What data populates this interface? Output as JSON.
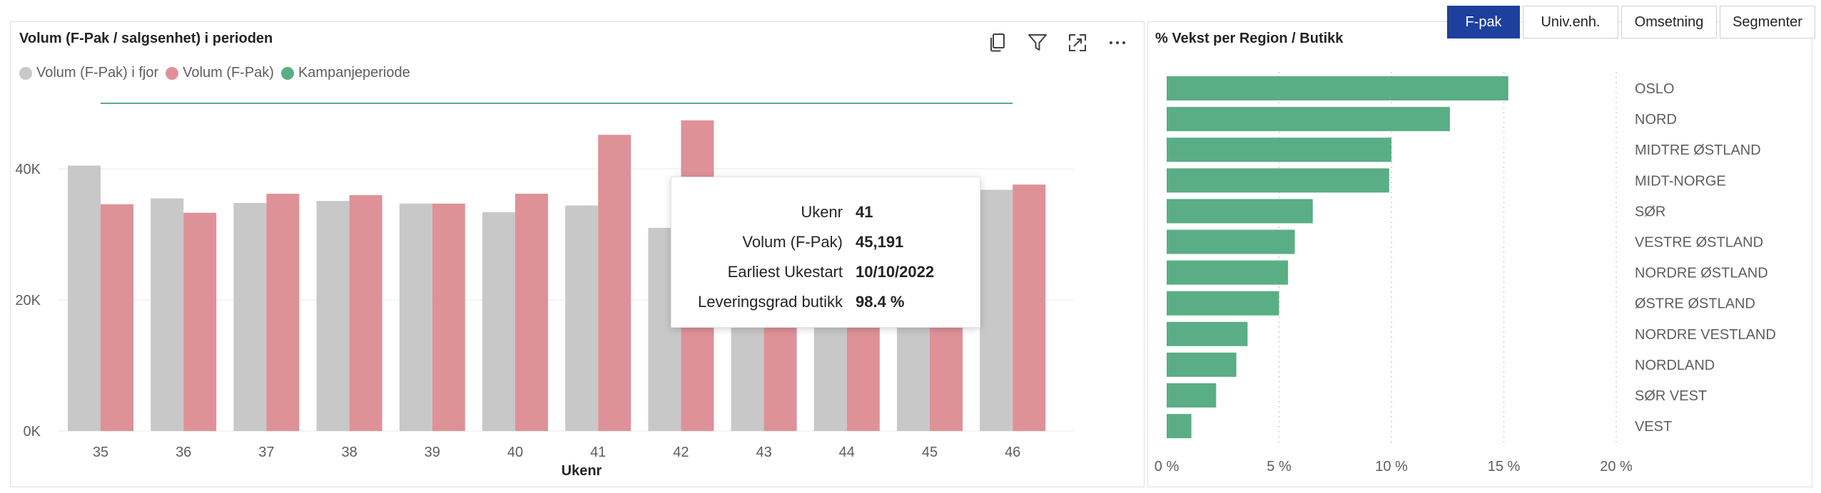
{
  "tabs": [
    {
      "label": "F-pak",
      "active": true
    },
    {
      "label": "Univ.enh.",
      "active": false
    },
    {
      "label": "Omsetning",
      "active": false
    },
    {
      "label": "Segmenter",
      "active": false
    }
  ],
  "left_chart": {
    "title": "Volum (F-Pak / salgsenhet) i perioden",
    "legend": [
      "Volum (F-Pak) i fjor",
      "Volum (F-Pak)",
      "Kampanjeperiode"
    ]
  },
  "right_chart": {
    "title": "% Vekst per Region / Butikk"
  },
  "tooltip": {
    "rows": [
      {
        "key": "Ukenr",
        "value": "41"
      },
      {
        "key": "Volum (F-Pak)",
        "value": "45,191"
      },
      {
        "key": "Earliest Ukestart",
        "value": "10/10/2022"
      },
      {
        "key": "Leveringsgrad butikk",
        "value": "98.4 %"
      }
    ]
  },
  "icons": [
    "copy-icon",
    "filter-icon",
    "focus-mode-icon",
    "more-options-icon"
  ],
  "colors": {
    "last_year": "#c8c8c8",
    "current": "#df9198",
    "campaign": "#5aae85",
    "growth": "#5aae85",
    "active_tab": "#1d3f9e"
  },
  "chart_data": [
    {
      "type": "bar",
      "title": "Volum (F-Pak / salgsenhet) i perioden",
      "xlabel": "Ukenr",
      "ylabel": "",
      "categories": [
        "35",
        "36",
        "37",
        "38",
        "39",
        "40",
        "41",
        "42",
        "43",
        "44",
        "45",
        "46"
      ],
      "series": [
        {
          "name": "Volum (F-Pak) i fjor",
          "values": [
            40500,
            35500,
            34800,
            35100,
            34700,
            33400,
            34400,
            31000,
            35400,
            35400,
            35800,
            36800
          ]
        },
        {
          "name": "Volum (F-Pak)",
          "values": [
            34600,
            33300,
            36200,
            36000,
            34700,
            36200,
            45191,
            47400,
            38200,
            36000,
            36600,
            37600
          ]
        },
        {
          "name": "Kampanjeperiode",
          "type": "line",
          "values": [
            50000,
            50000,
            50000,
            50000,
            50000,
            50000,
            50000,
            50000,
            50000,
            50000,
            50000,
            50000
          ]
        }
      ],
      "yticks": [
        "0K",
        "20K",
        "40K"
      ],
      "ylim": [
        0,
        56000
      ],
      "grid": true,
      "legend_position": "top-left"
    },
    {
      "type": "bar",
      "orientation": "horizontal",
      "title": "% Vekst per Region / Butikk",
      "categories": [
        "OSLO",
        "NORD",
        "MIDTRE ØSTLAND",
        "MIDT-NORGE",
        "SØR",
        "VESTRE ØSTLAND",
        "NORDRE ØSTLAND",
        "ØSTRE ØSTLAND",
        "NORDRE VESTLAND",
        "NORDLAND",
        "SØR VEST",
        "VEST"
      ],
      "values": [
        15.2,
        12.6,
        10.0,
        9.9,
        6.5,
        5.7,
        5.4,
        5.0,
        3.6,
        3.1,
        2.2,
        1.1
      ],
      "xticks": [
        "0 %",
        "5 %",
        "10 %",
        "15 %",
        "20 %"
      ],
      "xlim": [
        0,
        20
      ],
      "grid": true
    }
  ]
}
